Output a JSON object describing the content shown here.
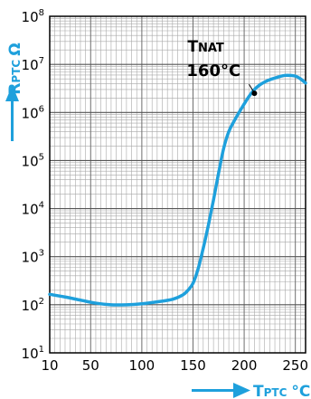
{
  "chart_data": {
    "type": "line",
    "y_scale": "log",
    "grid": true,
    "x_axis": {
      "label_main": "T",
      "label_sub": "PTC",
      "unit": "°C",
      "range": [
        10,
        260
      ],
      "ticks": [
        10,
        50,
        100,
        150,
        200,
        250
      ]
    },
    "y_axis": {
      "label_main": "R",
      "label_sub": "PTC",
      "unit": "Ω",
      "range": [
        10,
        100000000
      ],
      "tick_labels": [
        {
          "base": "10",
          "exp": "1"
        },
        {
          "base": "10",
          "exp": "2"
        },
        {
          "base": "10",
          "exp": "3"
        },
        {
          "base": "10",
          "exp": "4"
        },
        {
          "base": "10",
          "exp": "5"
        },
        {
          "base": "10",
          "exp": "6"
        },
        {
          "base": "10",
          "exp": "7"
        },
        {
          "base": "10",
          "exp": "8"
        }
      ]
    },
    "series": [
      {
        "color": "#1ea0dc",
        "x": [
          10,
          25,
          40,
          55,
          70,
          85,
          100,
          115,
          130,
          140,
          145,
          150,
          155,
          160,
          165,
          170,
          175,
          180,
          185,
          190,
          195,
          200,
          205,
          210,
          215,
          220,
          225,
          230,
          235,
          240,
          245,
          250,
          255,
          260
        ],
        "y": [
          165,
          145,
          125,
          108,
          100,
          100,
          105,
          115,
          130,
          160,
          200,
          280,
          560,
          1500,
          4500,
          15000,
          55000,
          180000,
          400000,
          650000,
          1000000,
          1500000,
          2200000,
          3000000,
          3700000,
          4300000,
          4800000,
          5200000,
          5600000,
          5900000,
          5900000,
          5700000,
          5000000,
          4100000
        ]
      }
    ],
    "annotation": {
      "label_main": "T",
      "label_sub": "NAT",
      "value": "160°C",
      "point": {
        "x": 210,
        "y": 2500000
      }
    }
  }
}
